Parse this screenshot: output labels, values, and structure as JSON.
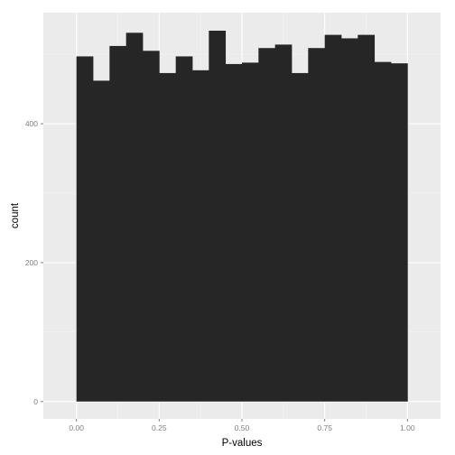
{
  "chart_data": {
    "type": "bar",
    "title": "",
    "xlabel": "P-values",
    "ylabel": "count",
    "bin_edges": [
      0.0,
      0.05,
      0.1,
      0.15,
      0.2,
      0.25,
      0.3,
      0.35,
      0.4,
      0.45,
      0.5,
      0.55,
      0.6,
      0.65,
      0.7,
      0.75,
      0.8,
      0.85,
      0.9,
      0.95,
      1.0
    ],
    "values": [
      497,
      462,
      512,
      531,
      505,
      473,
      497,
      477,
      534,
      486,
      488,
      509,
      514,
      473,
      509,
      528,
      523,
      528,
      489,
      487
    ],
    "xlim": [
      -0.1,
      1.1
    ],
    "ylim": [
      -25,
      560
    ],
    "x_ticks": [
      0.0,
      0.25,
      0.5,
      0.75,
      1.0
    ],
    "x_tick_labels": [
      "0.00",
      "0.25",
      "0.50",
      "0.75",
      "1.00"
    ],
    "y_ticks": [
      0,
      200,
      400
    ],
    "y_tick_labels": [
      "0",
      "200",
      "400"
    ],
    "grid": true,
    "legend": "none",
    "colors": {
      "panel_background": "#ebebeb",
      "grid_major": "#ffffff",
      "grid_minor": "#f5f5f5",
      "bar_fill": "#262626",
      "tick_label": "#7f7f7f",
      "axis_title": "#000000"
    }
  }
}
